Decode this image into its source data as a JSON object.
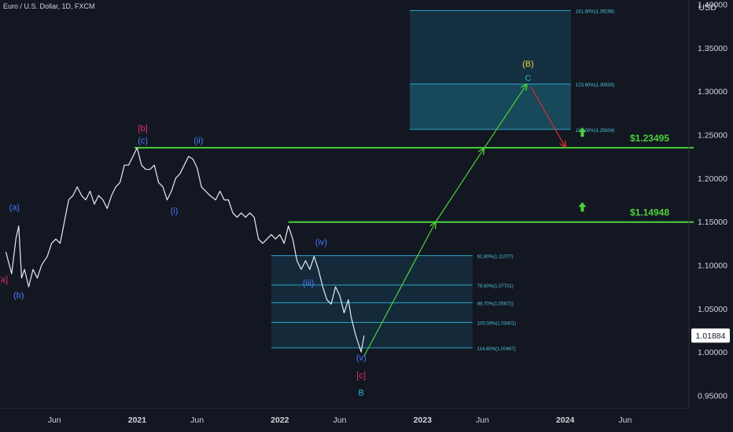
{
  "header": {
    "symbol_title": "Euro / U.S. Dollar, 1D, FXCM",
    "currency": "USD"
  },
  "chart_data": {
    "type": "line",
    "ylim": [
      0.935,
      1.405
    ],
    "price_axis_ticks": [
      {
        "value": 1.4,
        "label": "1.40000"
      },
      {
        "value": 1.35,
        "label": "1.35000"
      },
      {
        "value": 1.3,
        "label": "1.30000"
      },
      {
        "value": 1.25,
        "label": "1.25000"
      },
      {
        "value": 1.2,
        "label": "1.20000"
      },
      {
        "value": 1.15,
        "label": "1.15000"
      },
      {
        "value": 1.1,
        "label": "1.10000"
      },
      {
        "value": 1.05,
        "label": "1.05000"
      },
      {
        "value": 1.0,
        "label": "1.00000"
      },
      {
        "value": 0.95,
        "label": "0.95000"
      }
    ],
    "time_axis_ticks": [
      {
        "t": 2020.42,
        "label": "Jun",
        "bold": false
      },
      {
        "t": 2021.0,
        "label": "2021",
        "bold": true
      },
      {
        "t": 2021.42,
        "label": "Jun",
        "bold": false
      },
      {
        "t": 2022.0,
        "label": "2022",
        "bold": true
      },
      {
        "t": 2022.42,
        "label": "Jun",
        "bold": false
      },
      {
        "t": 2023.0,
        "label": "2023",
        "bold": true
      },
      {
        "t": 2023.42,
        "label": "Jun",
        "bold": false
      },
      {
        "t": 2024.0,
        "label": "2024",
        "bold": true
      },
      {
        "t": 2024.42,
        "label": "Jun",
        "bold": false
      }
    ],
    "current_price": "1.01884",
    "price_path": [
      [
        2020.08,
        1.115
      ],
      [
        2020.12,
        1.09
      ],
      [
        2020.15,
        1.13
      ],
      [
        2020.17,
        1.145
      ],
      [
        2020.19,
        1.085
      ],
      [
        2020.21,
        1.095
      ],
      [
        2020.24,
        1.075
      ],
      [
        2020.27,
        1.095
      ],
      [
        2020.3,
        1.085
      ],
      [
        2020.33,
        1.1
      ],
      [
        2020.37,
        1.11
      ],
      [
        2020.4,
        1.125
      ],
      [
        2020.43,
        1.13
      ],
      [
        2020.46,
        1.125
      ],
      [
        2020.49,
        1.15
      ],
      [
        2020.52,
        1.175
      ],
      [
        2020.55,
        1.18
      ],
      [
        2020.58,
        1.19
      ],
      [
        2020.61,
        1.18
      ],
      [
        2020.64,
        1.175
      ],
      [
        2020.67,
        1.185
      ],
      [
        2020.7,
        1.17
      ],
      [
        2020.73,
        1.18
      ],
      [
        2020.76,
        1.175
      ],
      [
        2020.79,
        1.165
      ],
      [
        2020.82,
        1.18
      ],
      [
        2020.85,
        1.19
      ],
      [
        2020.88,
        1.195
      ],
      [
        2020.91,
        1.215
      ],
      [
        2020.94,
        1.215
      ],
      [
        2020.97,
        1.225
      ],
      [
        2021.0,
        1.235
      ],
      [
        2021.03,
        1.215
      ],
      [
        2021.06,
        1.21
      ],
      [
        2021.09,
        1.21
      ],
      [
        2021.12,
        1.215
      ],
      [
        2021.15,
        1.195
      ],
      [
        2021.18,
        1.19
      ],
      [
        2021.21,
        1.175
      ],
      [
        2021.24,
        1.185
      ],
      [
        2021.27,
        1.2
      ],
      [
        2021.3,
        1.205
      ],
      [
        2021.33,
        1.215
      ],
      [
        2021.36,
        1.225
      ],
      [
        2021.39,
        1.222
      ],
      [
        2021.42,
        1.212
      ],
      [
        2021.45,
        1.19
      ],
      [
        2021.48,
        1.185
      ],
      [
        2021.51,
        1.18
      ],
      [
        2021.55,
        1.175
      ],
      [
        2021.58,
        1.185
      ],
      [
        2021.61,
        1.175
      ],
      [
        2021.64,
        1.175
      ],
      [
        2021.67,
        1.16
      ],
      [
        2021.7,
        1.155
      ],
      [
        2021.73,
        1.16
      ],
      [
        2021.76,
        1.155
      ],
      [
        2021.79,
        1.16
      ],
      [
        2021.82,
        1.155
      ],
      [
        2021.85,
        1.13
      ],
      [
        2021.88,
        1.125
      ],
      [
        2021.91,
        1.13
      ],
      [
        2021.94,
        1.135
      ],
      [
        2021.97,
        1.13
      ],
      [
        2022.0,
        1.135
      ],
      [
        2022.03,
        1.125
      ],
      [
        2022.06,
        1.145
      ],
      [
        2022.09,
        1.13
      ],
      [
        2022.12,
        1.105
      ],
      [
        2022.15,
        1.095
      ],
      [
        2022.18,
        1.105
      ],
      [
        2022.21,
        1.095
      ],
      [
        2022.24,
        1.11
      ],
      [
        2022.27,
        1.095
      ],
      [
        2022.3,
        1.075
      ],
      [
        2022.33,
        1.06
      ],
      [
        2022.36,
        1.055
      ],
      [
        2022.39,
        1.075
      ],
      [
        2022.42,
        1.065
      ],
      [
        2022.45,
        1.045
      ],
      [
        2022.48,
        1.06
      ],
      [
        2022.5,
        1.04
      ],
      [
        2022.53,
        1.02
      ],
      [
        2022.55,
        1.01
      ],
      [
        2022.57,
        1.0
      ],
      [
        2022.59,
        1.0188
      ]
    ],
    "horizontal_levels": [
      {
        "label": "$1.23495",
        "value": 1.23495,
        "t_start": 2020.98,
        "t_end": 2024.9
      },
      {
        "label": "$1.14948",
        "value": 1.14948,
        "t_start": 2022.06,
        "t_end": 2024.9
      }
    ],
    "fib_box_lower": {
      "t_start": 2021.94,
      "t_end": 2023.35,
      "levels": [
        {
          "label": "61.80%(1.11077)",
          "value": 1.11077
        },
        {
          "label": "78.60%(1.07701)",
          "value": 1.07701
        },
        {
          "label": "88.70%(1.05672)",
          "value": 1.05672
        },
        {
          "label": "100.00%(1.03401)",
          "value": 1.03401
        },
        {
          "label": "114.60%(1.00467)",
          "value": 1.00467
        }
      ]
    },
    "fib_box_upper": {
      "t_start": 2022.91,
      "t_end": 2024.04,
      "levels": [
        {
          "label": "161.80%(1.39296)",
          "value": 1.39296
        },
        {
          "label": "123.60%(1.30833)",
          "value": 1.30833
        },
        {
          "label": "100.00%(1.25604)",
          "value": 1.25604
        }
      ]
    },
    "projection_arrows": [
      {
        "color": "#4cd13b",
        "from": [
          2022.59,
          0.995
        ],
        "to": [
          2023.09,
          1.149
        ]
      },
      {
        "color": "#4cd13b",
        "from": [
          2023.09,
          1.149
        ],
        "to": [
          2023.43,
          1.234
        ]
      },
      {
        "color": "#4cd13b",
        "from": [
          2023.43,
          1.234
        ],
        "to": [
          2023.73,
          1.308
        ]
      },
      {
        "color": "#d8302b",
        "from": [
          2023.76,
          1.305
        ],
        "to": [
          2024.0,
          1.236
        ]
      }
    ],
    "up_arrows": [
      {
        "t": 2024.12,
        "value": 1.253
      },
      {
        "t": 2024.12,
        "value": 1.167
      }
    ],
    "wave_labels": [
      {
        "text": "[a]",
        "t": 2020.06,
        "value": 1.08,
        "color": "#e0306b"
      },
      {
        "text": "(a)",
        "t": 2020.14,
        "value": 1.163,
        "color": "#4a7bff"
      },
      {
        "text": "(b)",
        "t": 2020.17,
        "value": 1.062,
        "color": "#4a7bff"
      },
      {
        "text": "[b]",
        "t": 2021.04,
        "value": 1.254,
        "color": "#e0306b"
      },
      {
        "text": "(c)",
        "t": 2021.04,
        "value": 1.24,
        "color": "#4a7bff"
      },
      {
        "text": "(ii)",
        "t": 2021.43,
        "value": 1.24,
        "color": "#4a7bff"
      },
      {
        "text": "(i)",
        "t": 2021.26,
        "value": 1.159,
        "color": "#4a7bff"
      },
      {
        "text": "(iv)",
        "t": 2022.29,
        "value": 1.123,
        "color": "#4a7bff"
      },
      {
        "text": "(iii)",
        "t": 2022.2,
        "value": 1.076,
        "color": "#4a7bff"
      },
      {
        "text": "(v)",
        "t": 2022.57,
        "value": 0.99,
        "color": "#4a7bff"
      },
      {
        "text": "[c]",
        "t": 2022.57,
        "value": 0.97,
        "color": "#e0306b"
      },
      {
        "text": "B",
        "t": 2022.57,
        "value": 0.95,
        "color": "#26b5c9"
      },
      {
        "text": "(B)",
        "t": 2023.74,
        "value": 1.328,
        "color": "#f0d23c"
      },
      {
        "text": "C",
        "t": 2023.74,
        "value": 1.312,
        "color": "#26b5c9"
      }
    ]
  }
}
